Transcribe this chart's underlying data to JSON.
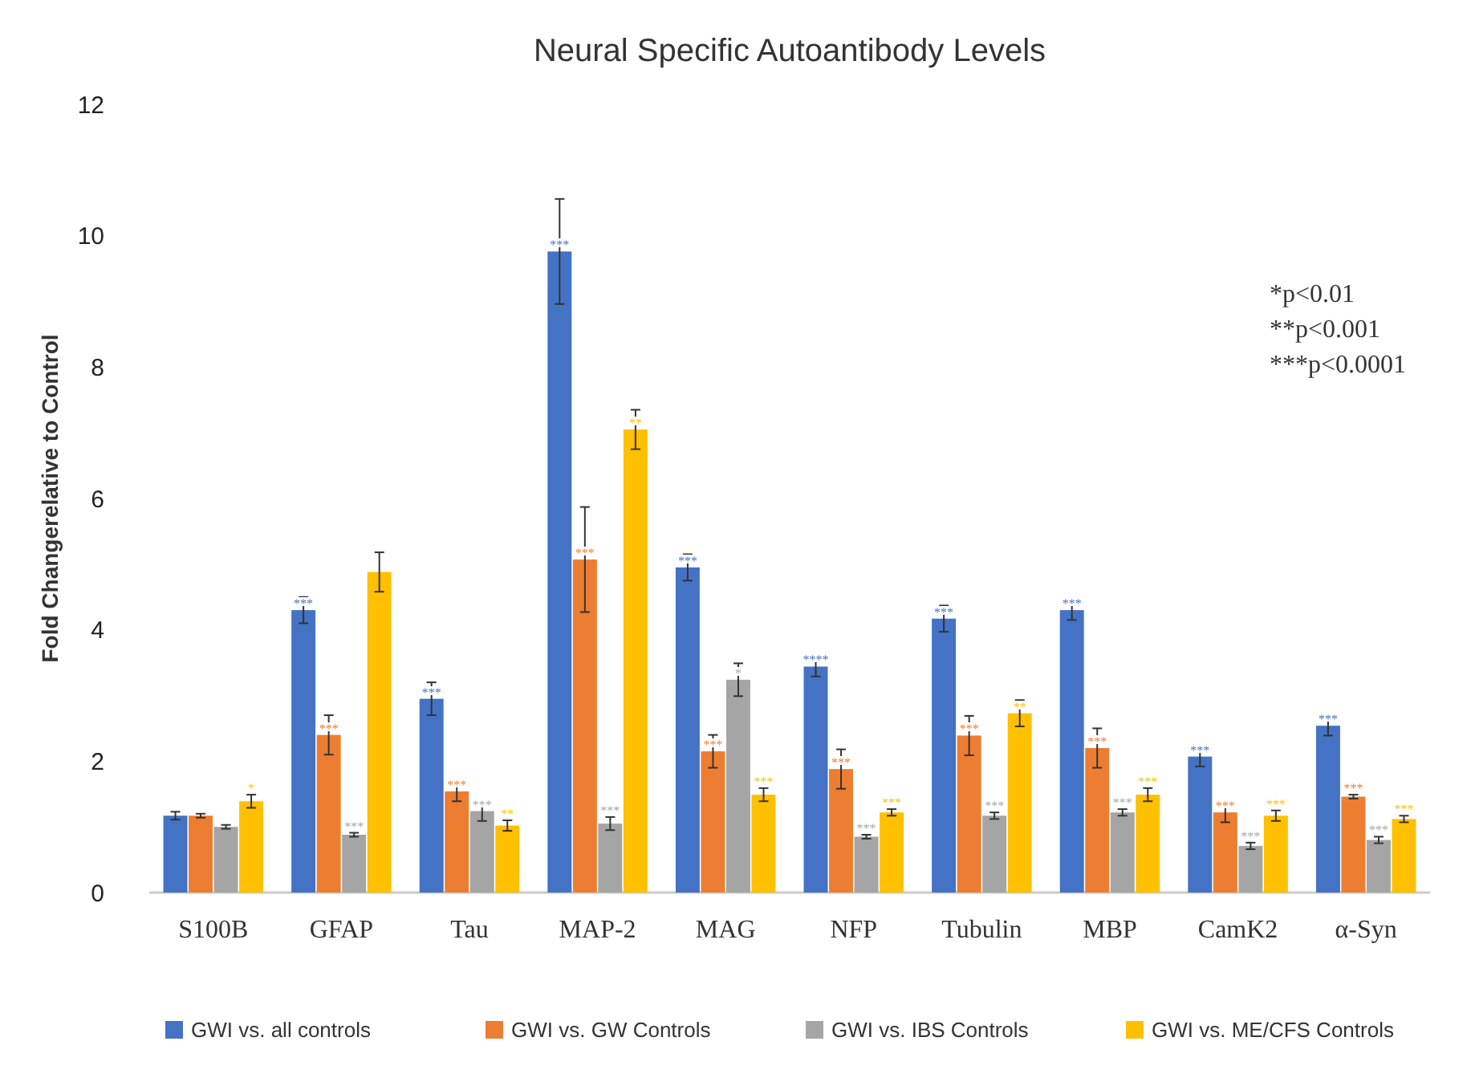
{
  "chart_data": {
    "type": "bar",
    "title": "Neural Specific Autoantibody Levels",
    "ylabel": "Fold Changerelative to Control",
    "categories": [
      "S100B",
      "GFAP",
      "Tau",
      "MAP-2",
      "MAG",
      "NFP",
      "Tubulin",
      "MBP",
      "CamK2",
      "α-Syn"
    ],
    "series": [
      {
        "name": "GWI vs. all controls",
        "color": "#4472c4",
        "values": [
          1.17,
          4.3,
          2.95,
          9.76,
          4.95,
          3.44,
          4.17,
          4.3,
          2.07,
          2.54
        ],
        "errors": [
          0.06,
          0.2,
          0.25,
          0.8,
          0.2,
          0.15,
          0.2,
          0.15,
          0.15,
          0.15
        ],
        "value_labels": [
          null,
          "***",
          "***",
          "***",
          "***",
          "****",
          "***",
          "***",
          "***",
          "***"
        ]
      },
      {
        "name": "GWI vs. GW Controls",
        "color": "#ed7d31",
        "values": [
          1.17,
          2.4,
          1.54,
          5.07,
          2.15,
          1.88,
          2.39,
          2.2,
          1.22,
          1.46
        ],
        "errors": [
          0.03,
          0.3,
          0.15,
          0.8,
          0.25,
          0.3,
          0.3,
          0.3,
          0.15,
          0.03
        ],
        "value_labels": [
          null,
          "***",
          "***",
          "***",
          "***",
          "***",
          "***",
          "***",
          "***",
          "***"
        ]
      },
      {
        "name": "GWI vs. IBS Controls",
        "color": "#a5a5a5",
        "values": [
          1.0,
          0.88,
          1.24,
          1.05,
          3.24,
          0.85,
          1.17,
          1.22,
          0.71,
          0.8
        ],
        "errors": [
          0.03,
          0.03,
          0.15,
          0.1,
          0.25,
          0.03,
          0.05,
          0.05,
          0.05,
          0.05
        ],
        "value_labels": [
          null,
          "***",
          "***",
          "***",
          "*",
          "***",
          "***",
          "***",
          "***",
          "***"
        ]
      },
      {
        "name": "GWI vs. ME/CFS Controls",
        "color": "#ffc000",
        "values": [
          1.39,
          4.88,
          1.02,
          7.05,
          1.49,
          1.22,
          2.73,
          1.49,
          1.17,
          1.12
        ],
        "errors": [
          0.1,
          0.3,
          0.08,
          0.3,
          0.1,
          0.05,
          0.2,
          0.1,
          0.08,
          0.05
        ],
        "value_labels": [
          "*",
          null,
          "**",
          "**",
          "***",
          "***",
          "**",
          "***",
          "***",
          "***"
        ]
      }
    ],
    "ylim": [
      0,
      12
    ],
    "yticks": [
      0,
      2,
      4,
      6,
      8,
      10,
      12
    ],
    "grid": false,
    "legend": "bottom",
    "annotations": [
      "*p<0.01",
      "**p<0.001",
      "***p<0.0001"
    ]
  }
}
